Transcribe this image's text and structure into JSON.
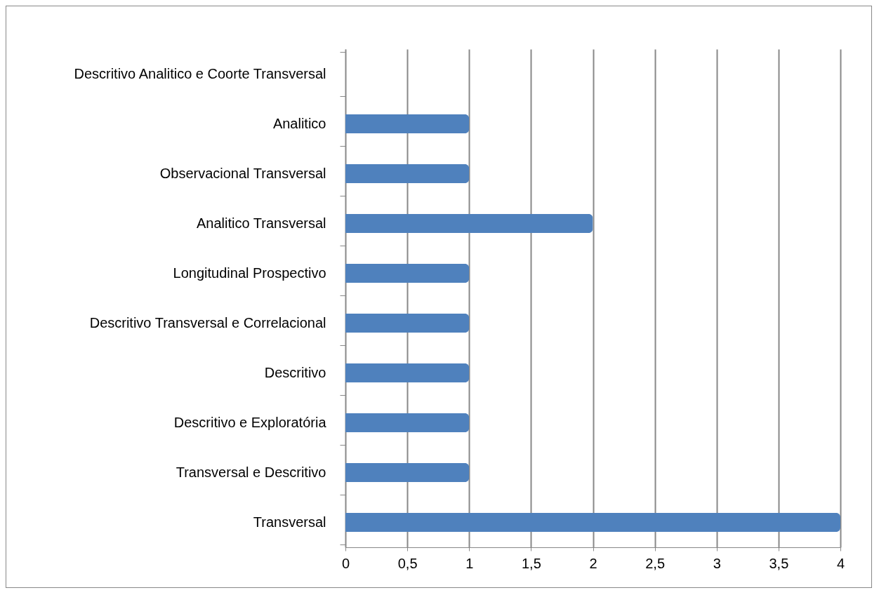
{
  "chart_data": {
    "type": "bar",
    "orientation": "horizontal",
    "categories": [
      "Descritivo Analitico e Coorte Transversal",
      "Analitico",
      "Observacional Transversal",
      "Analitico Transversal",
      "Longitudinal Prospectivo",
      "Descritivo Transversal e Correlacional",
      "Descritivo",
      "Descritivo e Exploratória",
      "Transversal e Descritivo",
      "Transversal"
    ],
    "values": [
      0,
      1,
      1,
      2,
      1,
      1,
      1,
      1,
      1,
      4
    ],
    "color": "#4f81bd",
    "xlim": [
      0,
      4
    ],
    "xticks": [
      0,
      {
        "value": 0.5,
        "label": "0,5"
      },
      1,
      {
        "value": 1.5,
        "label": "1,5"
      },
      2,
      {
        "value": 2.5,
        "label": "2,5"
      },
      3,
      {
        "value": 3.5,
        "label": "3,5"
      },
      4
    ],
    "grid": "x"
  }
}
